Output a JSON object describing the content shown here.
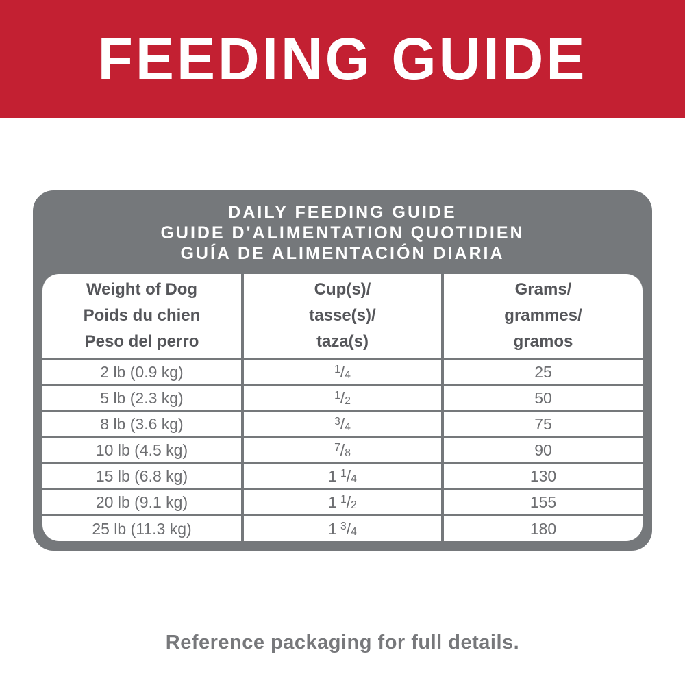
{
  "banner": {
    "title": "FEEDING GUIDE"
  },
  "card": {
    "title_lines": [
      "DAILY FEEDING GUIDE",
      "GUIDE D'ALIMENTATION QUOTIDIEN",
      "GUÍA DE ALIMENTACIÓN DIARIA"
    ]
  },
  "table": {
    "slash": "/",
    "columns": [
      {
        "lines": [
          "Weight of Dog",
          "Poids du chien",
          "Peso del perro"
        ]
      },
      {
        "lines": [
          "Cup(s)/",
          "tasse(s)/",
          "taza(s)"
        ]
      },
      {
        "lines": [
          "Grams/",
          "grammes/",
          "gramos"
        ]
      }
    ],
    "rows": [
      {
        "weight": "2 lb (0.9 kg)",
        "cups": {
          "whole": "",
          "num": "1",
          "den": "4"
        },
        "grams": "25"
      },
      {
        "weight": "5 lb (2.3 kg)",
        "cups": {
          "whole": "",
          "num": "1",
          "den": "2"
        },
        "grams": "50"
      },
      {
        "weight": "8 lb (3.6 kg)",
        "cups": {
          "whole": "",
          "num": "3",
          "den": "4"
        },
        "grams": "75"
      },
      {
        "weight": "10 lb (4.5 kg)",
        "cups": {
          "whole": "",
          "num": "7",
          "den": "8"
        },
        "grams": "90"
      },
      {
        "weight": "15 lb (6.8 kg)",
        "cups": {
          "whole": "1",
          "num": "1",
          "den": "4"
        },
        "grams": "130"
      },
      {
        "weight": "20 lb (9.1 kg)",
        "cups": {
          "whole": "1",
          "num": "1",
          "den": "2"
        },
        "grams": "155"
      },
      {
        "weight": "25 lb (11.3 kg)",
        "cups": {
          "whole": "1",
          "num": "3",
          "den": "4"
        },
        "grams": "180"
      }
    ]
  },
  "footer": {
    "note": "Reference packaging for full details."
  },
  "colors": {
    "brand_red": "#c32032",
    "gray": "#75787b",
    "cell_text": "#6d6e71",
    "header_text": "#55565a",
    "footer_text": "#77787b"
  }
}
